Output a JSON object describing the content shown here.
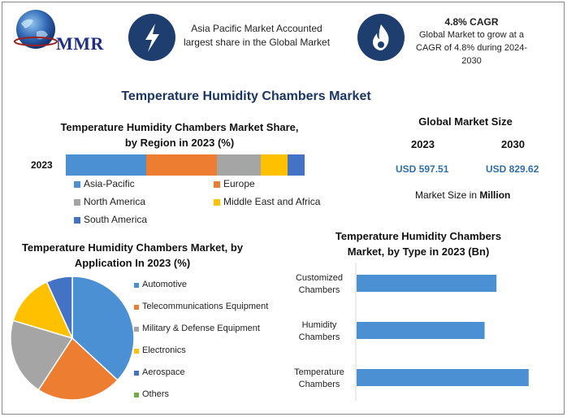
{
  "brand": {
    "name": "MMR"
  },
  "header": {
    "asia_text": "Asia Pacific Market Accounted largest share in the Global Market",
    "cagr_title": "4.8% CAGR",
    "cagr_text": "Global Market to grow at a CAGR of 4.8% during 2024-2030"
  },
  "title": "Temperature Humidity Chambers Market",
  "market_size": {
    "title": "Global Market Size",
    "year1": "2023",
    "year2": "2030",
    "value1": "USD 597.51",
    "value2": "USD 829.62",
    "note_prefix": "Market Size in ",
    "note_bold": "Million"
  },
  "colors": {
    "blue": "#4a90d2",
    "orange": "#ed7d31",
    "gray": "#a5a5a5",
    "yellow": "#ffc000",
    "navy": "#4472c4",
    "green": "#70ad47",
    "dark_icon": "#1e3e6f"
  },
  "chart_data": [
    {
      "type": "bar",
      "orientation": "horizontal-stacked",
      "title": "Temperature Humidity Chambers Market Share, by Region in 2023 (%)",
      "categories": [
        "2023"
      ],
      "series": [
        {
          "name": "Asia-Pacific",
          "values": [
            33
          ]
        },
        {
          "name": "Europe",
          "values": [
            29
          ]
        },
        {
          "name": "North America",
          "values": [
            18
          ]
        },
        {
          "name": "Middle East and Africa",
          "values": [
            11
          ]
        },
        {
          "name": "South America",
          "values": [
            7
          ]
        }
      ],
      "xlim": [
        0,
        100
      ],
      "legend": "bottom"
    },
    {
      "type": "pie",
      "title": "Temperature Humidity Chambers Market, by Application In 2023 (%)",
      "labels": [
        "Automotive",
        "Telecommunications Equipment",
        "Military & Defense Equipment",
        "Electronics",
        "Aerospace",
        "Others"
      ],
      "values": [
        38,
        23,
        21,
        14,
        7,
        0
      ],
      "legend": "right"
    },
    {
      "type": "bar",
      "orientation": "horizontal",
      "title": "Temperature Humidity Chambers Market, by Type in 2023 (Bn)",
      "categories": [
        "Customized Chambers",
        "Humidity Chambers",
        "Temperature Chambers"
      ],
      "values": [
        165,
        151,
        203
      ],
      "xlim": [
        0,
        230
      ]
    }
  ]
}
